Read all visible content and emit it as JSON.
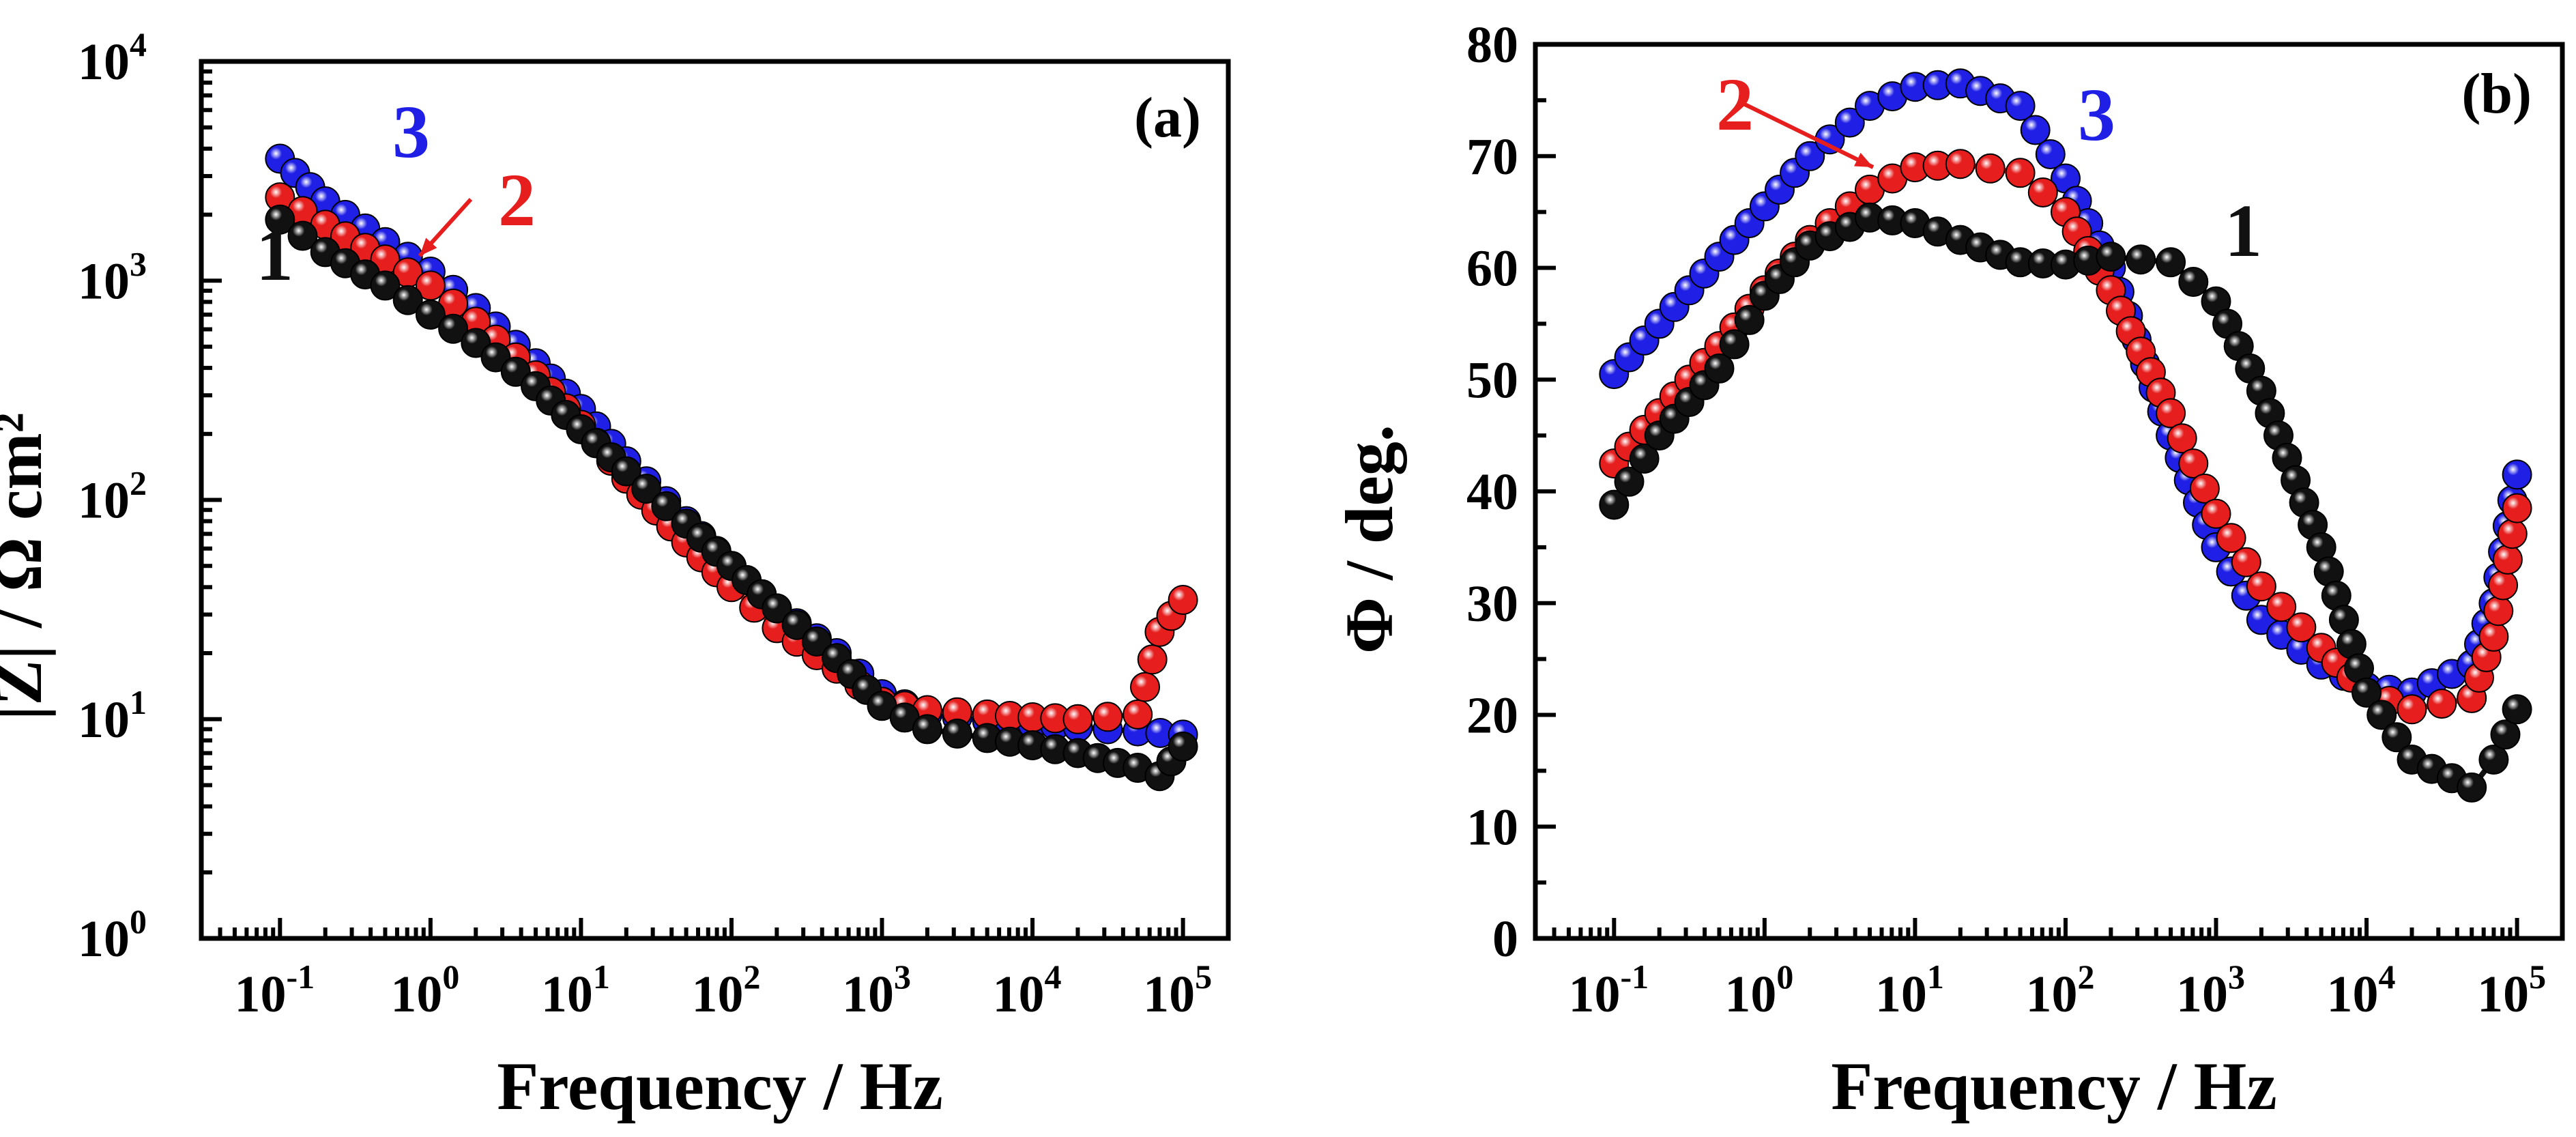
{
  "chart_data": [
    {
      "type": "scatter",
      "panel_label": "(a)",
      "xlabel": "Frequency / Hz",
      "ylabel": "|Z| / Ω cm²",
      "x_scale": "log",
      "y_scale": "log",
      "xlim": [
        0.03,
        200000
      ],
      "ylim": [
        1,
        10000
      ],
      "x_ticks": [
        {
          "value": 0.1,
          "base": "10",
          "exp": "-1"
        },
        {
          "value": 1,
          "base": "10",
          "exp": "0"
        },
        {
          "value": 10,
          "base": "10",
          "exp": "1"
        },
        {
          "value": 100,
          "base": "10",
          "exp": "2"
        },
        {
          "value": 1000,
          "base": "10",
          "exp": "3"
        },
        {
          "value": 10000,
          "base": "10",
          "exp": "4"
        },
        {
          "value": 100000,
          "base": "10",
          "exp": "5"
        }
      ],
      "y_ticks": [
        {
          "value": 1,
          "base": "10",
          "exp": "0"
        },
        {
          "value": 10,
          "base": "10",
          "exp": "1"
        },
        {
          "value": 100,
          "base": "10",
          "exp": "2"
        },
        {
          "value": 1000,
          "base": "10",
          "exp": "3"
        },
        {
          "value": 10000,
          "base": "10",
          "exp": "4"
        }
      ],
      "series": [
        {
          "label": "3",
          "color": "#1f1fe6",
          "points": [
            [
              0.1,
              3600
            ],
            [
              0.2,
              2300
            ],
            [
              0.5,
              1500
            ],
            [
              1,
              1100
            ],
            [
              2,
              750
            ],
            [
              5,
              420
            ],
            [
              10,
              260
            ],
            [
              20,
              150
            ],
            [
              50,
              80
            ],
            [
              100,
              50
            ],
            [
              200,
              32
            ],
            [
              500,
              20
            ],
            [
              1000,
              13
            ],
            [
              2000,
              10.5
            ],
            [
              5000,
              9.8
            ],
            [
              10000,
              9.5
            ],
            [
              20000,
              9.2
            ],
            [
              50000,
              8.8
            ],
            [
              100000,
              8.5
            ]
          ]
        },
        {
          "label": "2",
          "color": "#e61e1e",
          "points": [
            [
              0.1,
              2400
            ],
            [
              0.2,
              1800
            ],
            [
              0.5,
              1250
            ],
            [
              1,
              950
            ],
            [
              2,
              650
            ],
            [
              5,
              370
            ],
            [
              10,
              220
            ],
            [
              20,
              125
            ],
            [
              50,
              64
            ],
            [
              100,
              40
            ],
            [
              200,
              26
            ],
            [
              500,
              17
            ],
            [
              1000,
              12
            ],
            [
              2000,
              11
            ],
            [
              5000,
              10.5
            ],
            [
              10000,
              10.2
            ],
            [
              20000,
              10
            ],
            [
              50000,
              10.5
            ],
            [
              70000,
              25
            ],
            [
              100000,
              35
            ]
          ]
        },
        {
          "label": "1",
          "color": "#111111",
          "points": [
            [
              0.1,
              1900
            ],
            [
              0.2,
              1350
            ],
            [
              0.5,
              950
            ],
            [
              1,
              700
            ],
            [
              2,
              520
            ],
            [
              5,
              330
            ],
            [
              10,
              210
            ],
            [
              20,
              135
            ],
            [
              50,
              78
            ],
            [
              100,
              50
            ],
            [
              200,
              32
            ],
            [
              500,
              19
            ],
            [
              1000,
              11.5
            ],
            [
              2000,
              9
            ],
            [
              5000,
              8.2
            ],
            [
              10000,
              7.6
            ],
            [
              20000,
              7
            ],
            [
              50000,
              6
            ],
            [
              70000,
              5.5
            ],
            [
              100000,
              7.5
            ]
          ]
        }
      ],
      "annotations": [
        {
          "text": "3",
          "color": "#1f1fe6"
        },
        {
          "text": "2",
          "color": "#e61e1e"
        },
        {
          "text": "1",
          "color": "#111111"
        }
      ]
    },
    {
      "type": "scatter",
      "panel_label": "(b)",
      "xlabel": "Frequency / Hz",
      "ylabel": "Φ / deg.",
      "x_scale": "log",
      "y_scale": "linear",
      "xlim": [
        0.03,
        200000
      ],
      "ylim": [
        0,
        80
      ],
      "x_ticks": [
        {
          "value": 0.1,
          "base": "10",
          "exp": "-1"
        },
        {
          "value": 1,
          "base": "10",
          "exp": "0"
        },
        {
          "value": 10,
          "base": "10",
          "exp": "1"
        },
        {
          "value": 100,
          "base": "10",
          "exp": "2"
        },
        {
          "value": 1000,
          "base": "10",
          "exp": "3"
        },
        {
          "value": 10000,
          "base": "10",
          "exp": "4"
        },
        {
          "value": 100000,
          "base": "10",
          "exp": "5"
        }
      ],
      "y_ticks": [
        {
          "value": 0,
          "label": "0"
        },
        {
          "value": 10,
          "label": "10"
        },
        {
          "value": 20,
          "label": "20"
        },
        {
          "value": 30,
          "label": "30"
        },
        {
          "value": 40,
          "label": "40"
        },
        {
          "value": 50,
          "label": "50"
        },
        {
          "value": 60,
          "label": "60"
        },
        {
          "value": 70,
          "label": "70"
        },
        {
          "value": 80,
          "label": "80"
        }
      ],
      "series": [
        {
          "label": "3",
          "color": "#1f1fe6",
          "points": [
            [
              0.1,
              50.5
            ],
            [
              0.2,
              55
            ],
            [
              0.5,
              61
            ],
            [
              1,
              65.5
            ],
            [
              2,
              70
            ],
            [
              5,
              74.5
            ],
            [
              10,
              76.2
            ],
            [
              20,
              76.5
            ],
            [
              50,
              74.5
            ],
            [
              100,
              68
            ],
            [
              200,
              60
            ],
            [
              500,
              45
            ],
            [
              1000,
              35
            ],
            [
              2000,
              28.5
            ],
            [
              5000,
              24.5
            ],
            [
              10000,
              22.5
            ],
            [
              20000,
              22
            ],
            [
              50000,
              24.5
            ],
            [
              70000,
              30
            ],
            [
              100000,
              41.5
            ]
          ]
        },
        {
          "label": "2",
          "color": "#e61e1e",
          "points": [
            [
              0.1,
              42.5
            ],
            [
              0.2,
              47
            ],
            [
              0.5,
              53
            ],
            [
              1,
              58
            ],
            [
              2,
              62.5
            ],
            [
              5,
              67
            ],
            [
              10,
              69
            ],
            [
              20,
              69.3
            ],
            [
              50,
              68.5
            ],
            [
              100,
              65
            ],
            [
              200,
              58
            ],
            [
              500,
              47
            ],
            [
              1000,
              38
            ],
            [
              2000,
              31.5
            ],
            [
              5000,
              26
            ],
            [
              10000,
              22
            ],
            [
              20000,
              20.5
            ],
            [
              50000,
              21.5
            ],
            [
              70000,
              27
            ],
            [
              100000,
              38.5
            ]
          ]
        },
        {
          "label": "1",
          "color": "#111111",
          "points": [
            [
              0.1,
              38.8
            ],
            [
              0.2,
              45
            ],
            [
              0.5,
              51
            ],
            [
              1,
              57.5
            ],
            [
              2,
              62
            ],
            [
              5,
              64.5
            ],
            [
              10,
              64
            ],
            [
              20,
              62.5
            ],
            [
              50,
              60.5
            ],
            [
              100,
              60.3
            ],
            [
              200,
              61
            ],
            [
              500,
              60.5
            ],
            [
              1000,
              57
            ],
            [
              2000,
              49
            ],
            [
              5000,
              35
            ],
            [
              10000,
              22
            ],
            [
              20000,
              16
            ],
            [
              50000,
              13.5
            ],
            [
              70000,
              16
            ],
            [
              100000,
              20.5
            ]
          ]
        }
      ],
      "annotations": [
        {
          "text": "2",
          "color": "#e61e1e"
        },
        {
          "text": "3",
          "color": "#1f1fe6"
        },
        {
          "text": "1",
          "color": "#111111"
        }
      ]
    }
  ]
}
